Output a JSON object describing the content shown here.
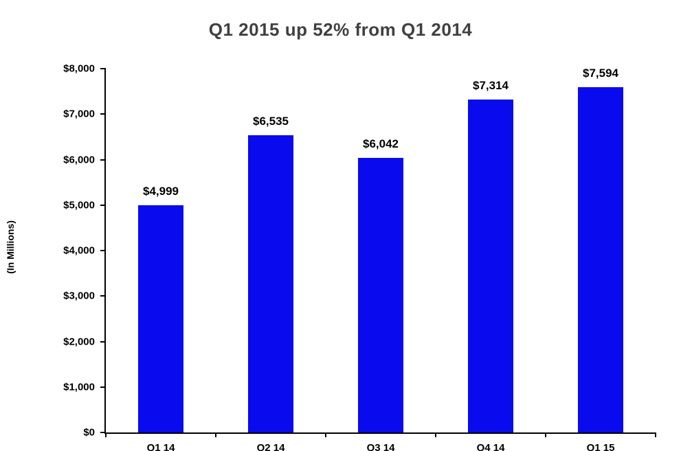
{
  "chart_data": {
    "type": "bar",
    "title": "Q1 2015 up 52% from Q1 2014",
    "categories": [
      "Q1 14",
      "Q2 14",
      "Q3 14",
      "Q4 14",
      "Q1 15"
    ],
    "values": [
      4999,
      6535,
      6042,
      7314,
      7594
    ],
    "value_labels": [
      "$4,999",
      "$6,535",
      "$6,042",
      "$7,314",
      "$7,594"
    ],
    "xlabel": "",
    "ylabel": "(In Millions)",
    "ylim": [
      0,
      8000
    ],
    "ytick_step": 1000,
    "ytick_labels": [
      "$0",
      "$1,000",
      "$2,000",
      "$3,000",
      "$4,000",
      "$5,000",
      "$6,000",
      "$7,000",
      "$8,000"
    ],
    "grid": false,
    "legend": "none"
  },
  "colors": {
    "bar": "#0a0aee",
    "title": "#404040",
    "axis": "#000000",
    "background": "#ffffff"
  }
}
